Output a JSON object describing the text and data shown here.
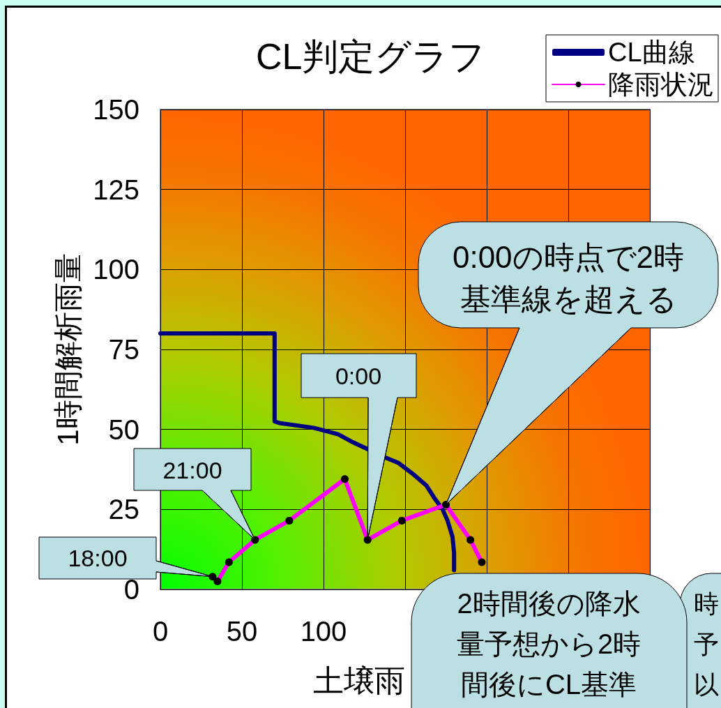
{
  "chart_data": {
    "type": "line",
    "title": "CL判定グラフ",
    "xlabel": "土壌雨",
    "ylabel": "1時間解析雨量",
    "xlim": [
      0,
      300
    ],
    "xticks": [
      0,
      50,
      100,
      {
        "value": 150,
        "label": null
      },
      {
        "value": 200,
        "label": null
      },
      {
        "value": 250,
        "label": null
      },
      {
        "value": 300,
        "label": null
      }
    ],
    "ylim": [
      0,
      150
    ],
    "yticks": [
      0,
      25,
      50,
      75,
      100,
      125,
      150
    ],
    "grid": true,
    "legend": "top right",
    "series": [
      {
        "name": "CL曲線",
        "color": "#000080",
        "marker": "none",
        "x": [
          0,
          70,
          70,
          73,
          94,
          109,
          118,
          139,
          146,
          155,
          163,
          168,
          173,
          176,
          179,
          180,
          180
        ],
        "values": [
          80,
          80,
          52.5,
          52,
          50.5,
          48.5,
          46,
          41,
          39.5,
          36,
          32.5,
          28.5,
          25,
          21.5,
          16.5,
          11.5,
          6
        ]
      },
      {
        "name": "降雨状況",
        "color": "#ff00ff",
        "marker": "circle",
        "x": [
          32,
          35,
          42,
          58,
          79,
          113,
          127,
          148,
          175,
          190,
          197
        ],
        "values": [
          4,
          2.5,
          8.5,
          15.5,
          21.5,
          34.5,
          15.5,
          21.5,
          26.5,
          15.5,
          8.5
        ]
      }
    ],
    "annotations": [
      {
        "text": "18:00",
        "x": 32,
        "y": 4
      },
      {
        "text": "21:00",
        "x": 58,
        "y": 15.5
      },
      {
        "text": "0:00",
        "x": 127,
        "y": 15.5
      },
      {
        "text": "0:00の時点で2時基準線を超える",
        "x": 175,
        "y": 26.5
      },
      "2時間後の降水量予想から2時間後にCL基準",
      "時予以"
    ]
  }
}
